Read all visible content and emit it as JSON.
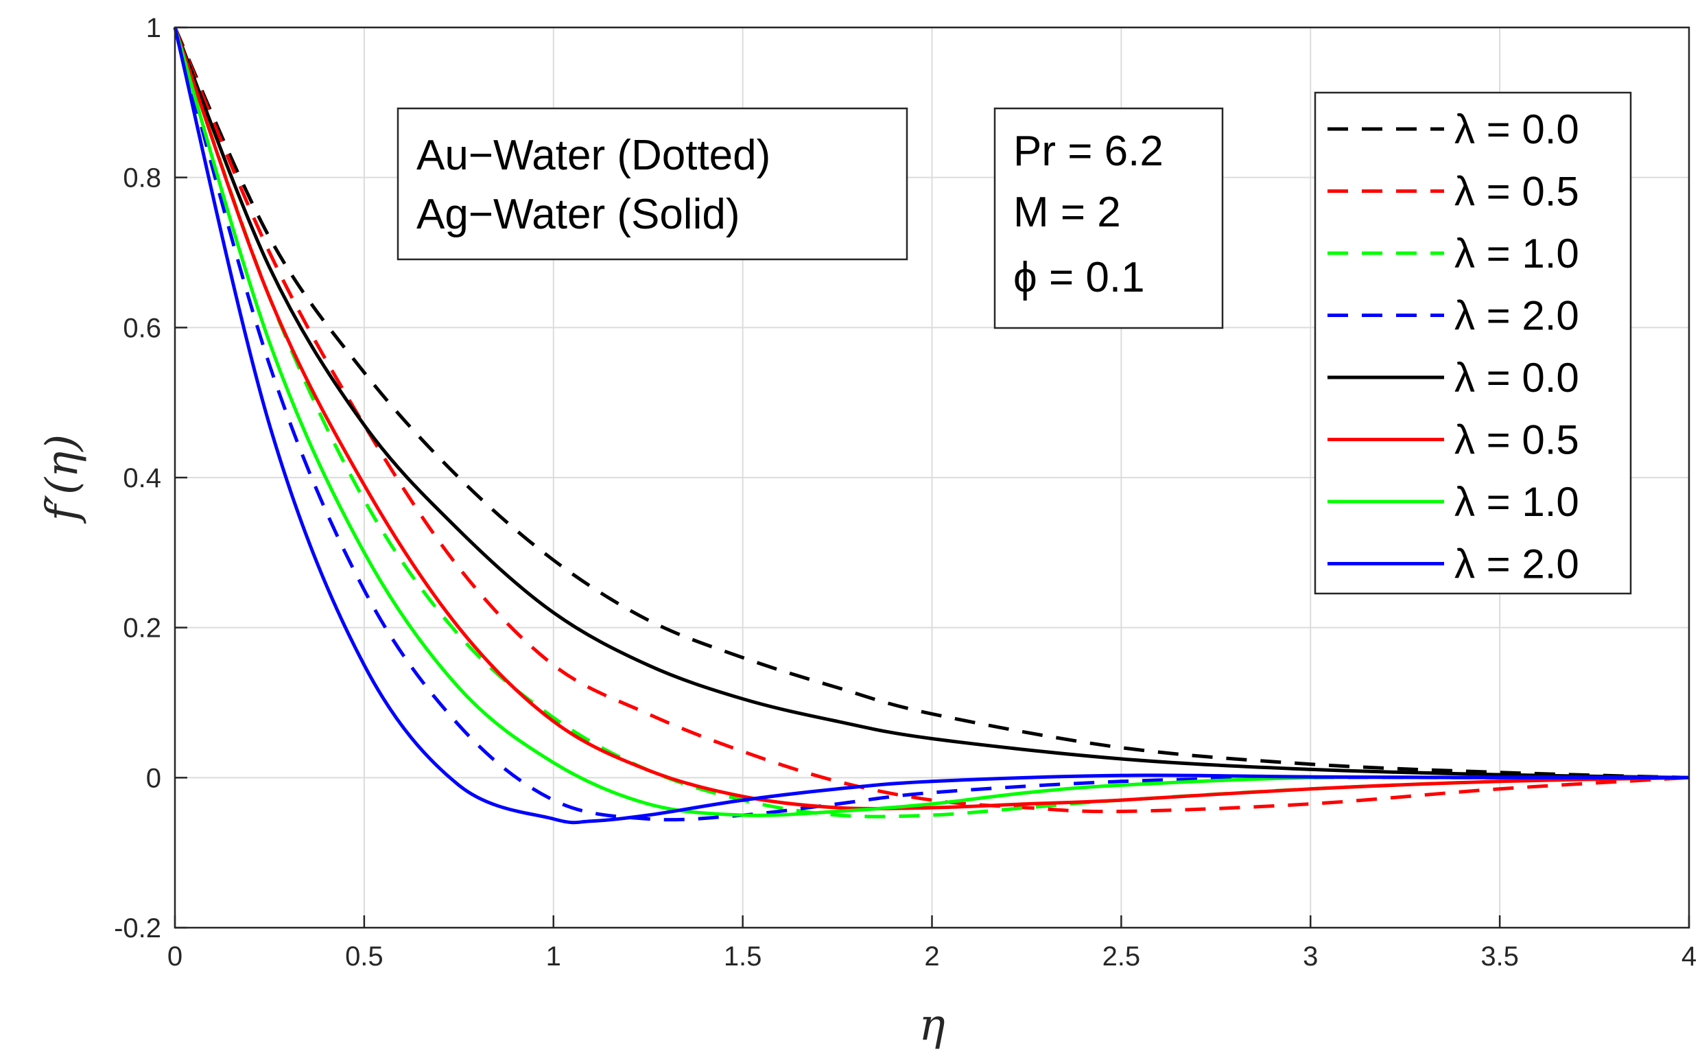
{
  "chart_data": {
    "type": "line",
    "xlabel": "η",
    "ylabel": "f′(η)",
    "xlim": [
      0,
      4
    ],
    "ylim": [
      -0.2,
      1
    ],
    "grid": true,
    "x_ticks": [
      "0",
      "0.5",
      "1",
      "1.5",
      "2",
      "2.5",
      "3",
      "3.5",
      "4"
    ],
    "y_ticks": [
      "-0.2",
      "0",
      "0.2",
      "0.4",
      "0.6",
      "0.8",
      "1"
    ],
    "legend_position": "top-right",
    "annotations": {
      "fluids": [
        "Au−Water (Dotted)",
        "Ag−Water (Solid)"
      ],
      "params": [
        "Pr = 6.2",
        "M = 2",
        "ϕ = 0.1"
      ]
    },
    "series": [
      {
        "name": "λ = 0.0",
        "label": "λ = 0.0",
        "color": "#000000",
        "style": "dashed",
        "x": [
          0,
          0.25,
          0.5,
          0.75,
          1.0,
          1.25,
          1.5,
          1.75,
          2.0,
          2.5,
          3.0,
          3.5,
          4.0
        ],
        "y": [
          1,
          0.72,
          0.54,
          0.4,
          0.29,
          0.21,
          0.16,
          0.12,
          0.085,
          0.04,
          0.018,
          0.007,
          0.0
        ]
      },
      {
        "name": "λ = 0.5",
        "label": "λ = 0.5",
        "color": "#ff0000",
        "style": "dashed",
        "x": [
          0,
          0.25,
          0.5,
          0.75,
          1.0,
          1.25,
          1.5,
          1.75,
          2.0,
          2.25,
          2.5,
          3.0,
          3.5,
          4.0
        ],
        "y": [
          1,
          0.7,
          0.47,
          0.28,
          0.15,
          0.085,
          0.035,
          -0.005,
          -0.03,
          -0.04,
          -0.045,
          -0.035,
          -0.015,
          0.0
        ]
      },
      {
        "name": "λ = 1.0",
        "label": "λ = 1.0",
        "color": "#00ff00",
        "style": "dashed",
        "x": [
          0,
          0.25,
          0.5,
          0.75,
          1.0,
          1.25,
          1.5,
          1.75,
          2.0,
          2.25,
          2.5,
          3.0,
          3.5,
          4.0
        ],
        "y": [
          1,
          0.64,
          0.37,
          0.19,
          0.08,
          0.01,
          -0.03,
          -0.05,
          -0.05,
          -0.04,
          -0.03,
          -0.015,
          -0.005,
          0.0
        ]
      },
      {
        "name": "λ = 2.0",
        "label": "λ = 2.0",
        "color": "#0000ff",
        "style": "dashed",
        "x": [
          0,
          0.25,
          0.5,
          0.75,
          1.0,
          1.25,
          1.5,
          1.75,
          2.0,
          2.5,
          3.0,
          3.5,
          4.0
        ],
        "y": [
          1,
          0.55,
          0.25,
          0.07,
          -0.03,
          -0.055,
          -0.05,
          -0.035,
          -0.02,
          -0.005,
          0.0,
          0.0,
          0.0
        ]
      },
      {
        "name": "λ = 0.0",
        "label": "λ = 0.0",
        "color": "#000000",
        "style": "solid",
        "x": [
          0,
          0.25,
          0.5,
          0.75,
          1.0,
          1.25,
          1.5,
          1.75,
          2.0,
          2.5,
          3.0,
          3.5,
          4.0
        ],
        "y": [
          1,
          0.68,
          0.47,
          0.33,
          0.22,
          0.15,
          0.105,
          0.075,
          0.052,
          0.025,
          0.011,
          0.004,
          0.0
        ]
      },
      {
        "name": "λ = 0.5",
        "label": "λ = 0.5",
        "color": "#ff0000",
        "style": "solid",
        "x": [
          0,
          0.25,
          0.5,
          0.75,
          1.0,
          1.25,
          1.5,
          1.75,
          2.0,
          2.25,
          2.5,
          3.0,
          3.5,
          4.0
        ],
        "y": [
          1,
          0.64,
          0.39,
          0.2,
          0.075,
          0.01,
          -0.025,
          -0.04,
          -0.04,
          -0.035,
          -0.03,
          -0.015,
          -0.005,
          0.0
        ]
      },
      {
        "name": "λ = 1.0",
        "label": "λ = 1.0",
        "color": "#00ff00",
        "style": "solid",
        "x": [
          0,
          0.25,
          0.5,
          0.75,
          1.0,
          1.25,
          1.5,
          1.75,
          2.0,
          2.25,
          2.5,
          3.0,
          3.5,
          4.0
        ],
        "y": [
          1,
          0.58,
          0.3,
          0.12,
          0.02,
          -0.035,
          -0.05,
          -0.045,
          -0.035,
          -0.02,
          -0.01,
          0.0,
          0.0,
          0.0
        ]
      },
      {
        "name": "λ = 2.0",
        "label": "λ = 2.0",
        "color": "#0000ff",
        "style": "solid",
        "x": [
          0,
          0.25,
          0.5,
          0.75,
          1.0,
          1.1,
          1.25,
          1.5,
          1.75,
          2.0,
          2.5,
          3.0,
          3.5,
          4.0
        ],
        "y": [
          1,
          0.47,
          0.15,
          -0.01,
          -0.055,
          -0.058,
          -0.05,
          -0.03,
          -0.015,
          -0.005,
          0.003,
          0.001,
          0.0,
          0.0
        ]
      }
    ]
  }
}
